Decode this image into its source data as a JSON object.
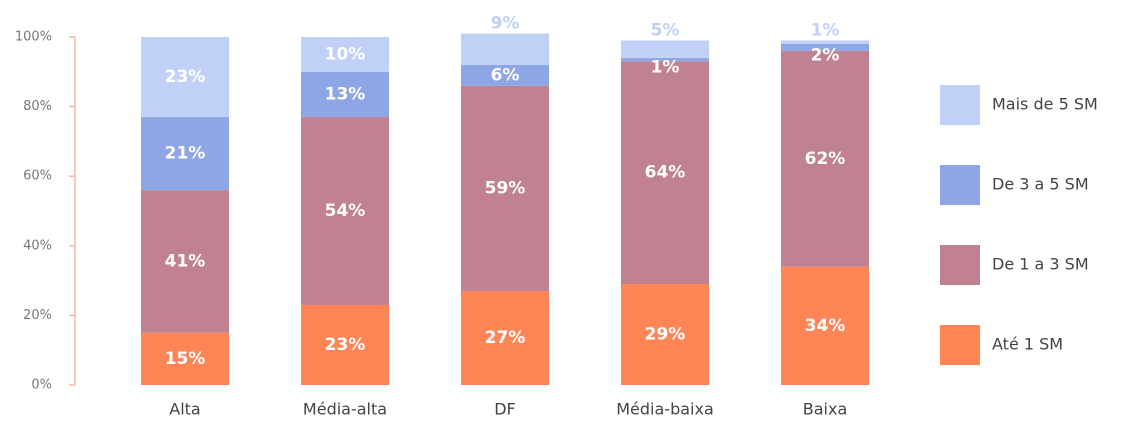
{
  "chart_data": {
    "type": "stacked_bar",
    "categories": [
      "Alta",
      "Média-alta",
      "DF",
      "Média-baixa",
      "Baixa"
    ],
    "series": [
      {
        "name": "Até 1 SM",
        "color": "#ff8456",
        "values": [
          15,
          23,
          27,
          29,
          34
        ],
        "value_labels": [
          "15%",
          "23%",
          "27%",
          "29%",
          "34%"
        ]
      },
      {
        "name": "De 1 a 3 SM",
        "color": "#c08291",
        "values": [
          41,
          54,
          59,
          64,
          62
        ],
        "value_labels": [
          "41%",
          "54%",
          "59%",
          "64%",
          "62%"
        ]
      },
      {
        "name": "De 3 a 5 SM",
        "color": "#8ea6e6",
        "values": [
          21,
          13,
          6,
          1,
          2
        ],
        "value_labels": [
          "21%",
          "13%",
          "6%",
          "1%",
          "2%"
        ]
      },
      {
        "name": "Mais de 5 SM",
        "color": "#c1d0f6",
        "values": [
          23,
          10,
          9,
          5,
          1
        ],
        "value_labels": [
          "23%",
          "10%",
          "9%",
          "5%",
          "1%"
        ]
      }
    ],
    "ylim": [
      0,
      100
    ],
    "yticks": [
      {
        "value": 0,
        "label": "0%"
      },
      {
        "value": 20,
        "label": "20%"
      },
      {
        "value": 40,
        "label": "40%"
      },
      {
        "value": 60,
        "label": "60%"
      },
      {
        "value": 80,
        "label": "80%"
      },
      {
        "value": 100,
        "label": "100%"
      }
    ],
    "legend": "right"
  }
}
